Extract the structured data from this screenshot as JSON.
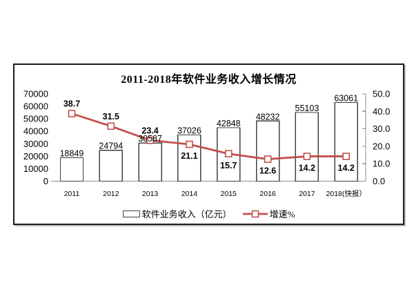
{
  "chart_data": {
    "type": "combo",
    "title": "2011-2018年软件业务收入增长情况",
    "categories": [
      "2011",
      "2012",
      "2013",
      "2014",
      "2015",
      "2016",
      "2017",
      "2018(快报）"
    ],
    "series": [
      {
        "name": "软件业务收入（亿元）",
        "type": "bar",
        "axis": "left",
        "values": [
          18849,
          24794,
          30587,
          37026,
          42848,
          48232,
          55103,
          63061
        ],
        "value_labels": [
          "18849",
          "24794",
          "30587",
          "37026",
          "42848",
          "48232",
          "55103",
          "63061"
        ]
      },
      {
        "name": "增速%",
        "type": "line",
        "axis": "right",
        "values": [
          38.7,
          31.5,
          23.4,
          21.1,
          15.7,
          12.6,
          14.2,
          14.2
        ],
        "value_labels": [
          "38.7",
          "31.5",
          "23.4",
          "21.1",
          "15.7",
          "12.6",
          "14.2",
          "14.2"
        ],
        "label_side": [
          "above",
          "above",
          "above",
          "below",
          "below",
          "below",
          "below",
          "below"
        ]
      }
    ],
    "left_axis": {
      "min": 0,
      "max": 70000,
      "step": 10000,
      "ticks": [
        "0",
        "10000",
        "20000",
        "30000",
        "40000",
        "50000",
        "60000",
        "70000"
      ]
    },
    "right_axis": {
      "min": 0,
      "max": 50,
      "step": 10,
      "ticks": [
        "0.0",
        "10.0",
        "20.0",
        "30.0",
        "40.0",
        "50.0"
      ]
    },
    "legend": [
      "软件业务收入（亿元）",
      "增速%"
    ],
    "legend_position": "bottom",
    "grid": "off",
    "colors": {
      "line": "#c0504d",
      "marker_fill": "#ffffff",
      "bar_fill": "#ffffff",
      "bar_stroke": "#404040",
      "axis": "#8c8c8c",
      "text": "#000000",
      "frame": "#1a1a1a"
    }
  }
}
